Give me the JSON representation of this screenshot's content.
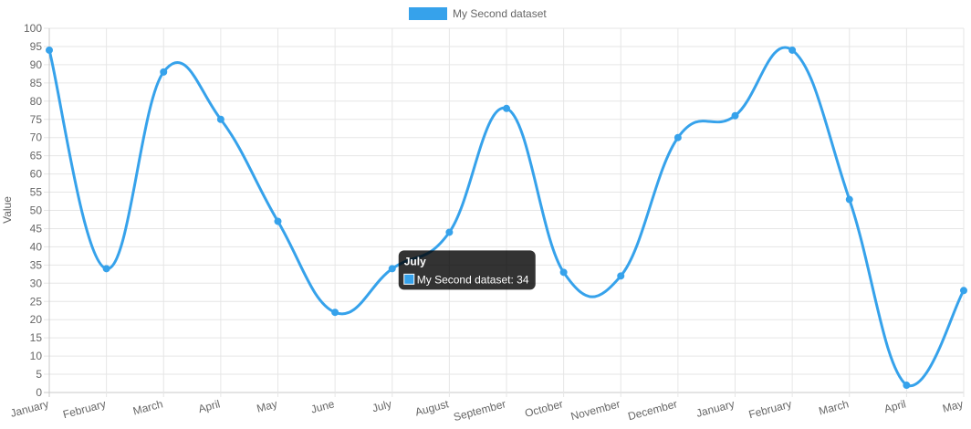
{
  "chart_data": {
    "type": "line",
    "categories": [
      "January",
      "February",
      "March",
      "April",
      "May",
      "June",
      "July",
      "August",
      "September",
      "October",
      "November",
      "December",
      "January",
      "February",
      "March",
      "April",
      "May"
    ],
    "series": [
      {
        "name": "My Second dataset",
        "color": "#36a2eb",
        "values": [
          94,
          34,
          88,
          75,
          47,
          22,
          34,
          44,
          78,
          33,
          32,
          70,
          76,
          94,
          53,
          2,
          28
        ]
      }
    ],
    "title": "",
    "xlabel": "",
    "ylabel": "Value",
    "ylim": [
      0,
      100
    ],
    "ytick_step": 5,
    "grid": true,
    "legend_position": "top",
    "tooltip": {
      "category_index": 6,
      "title": "July",
      "label": "My Second dataset: 34"
    }
  }
}
